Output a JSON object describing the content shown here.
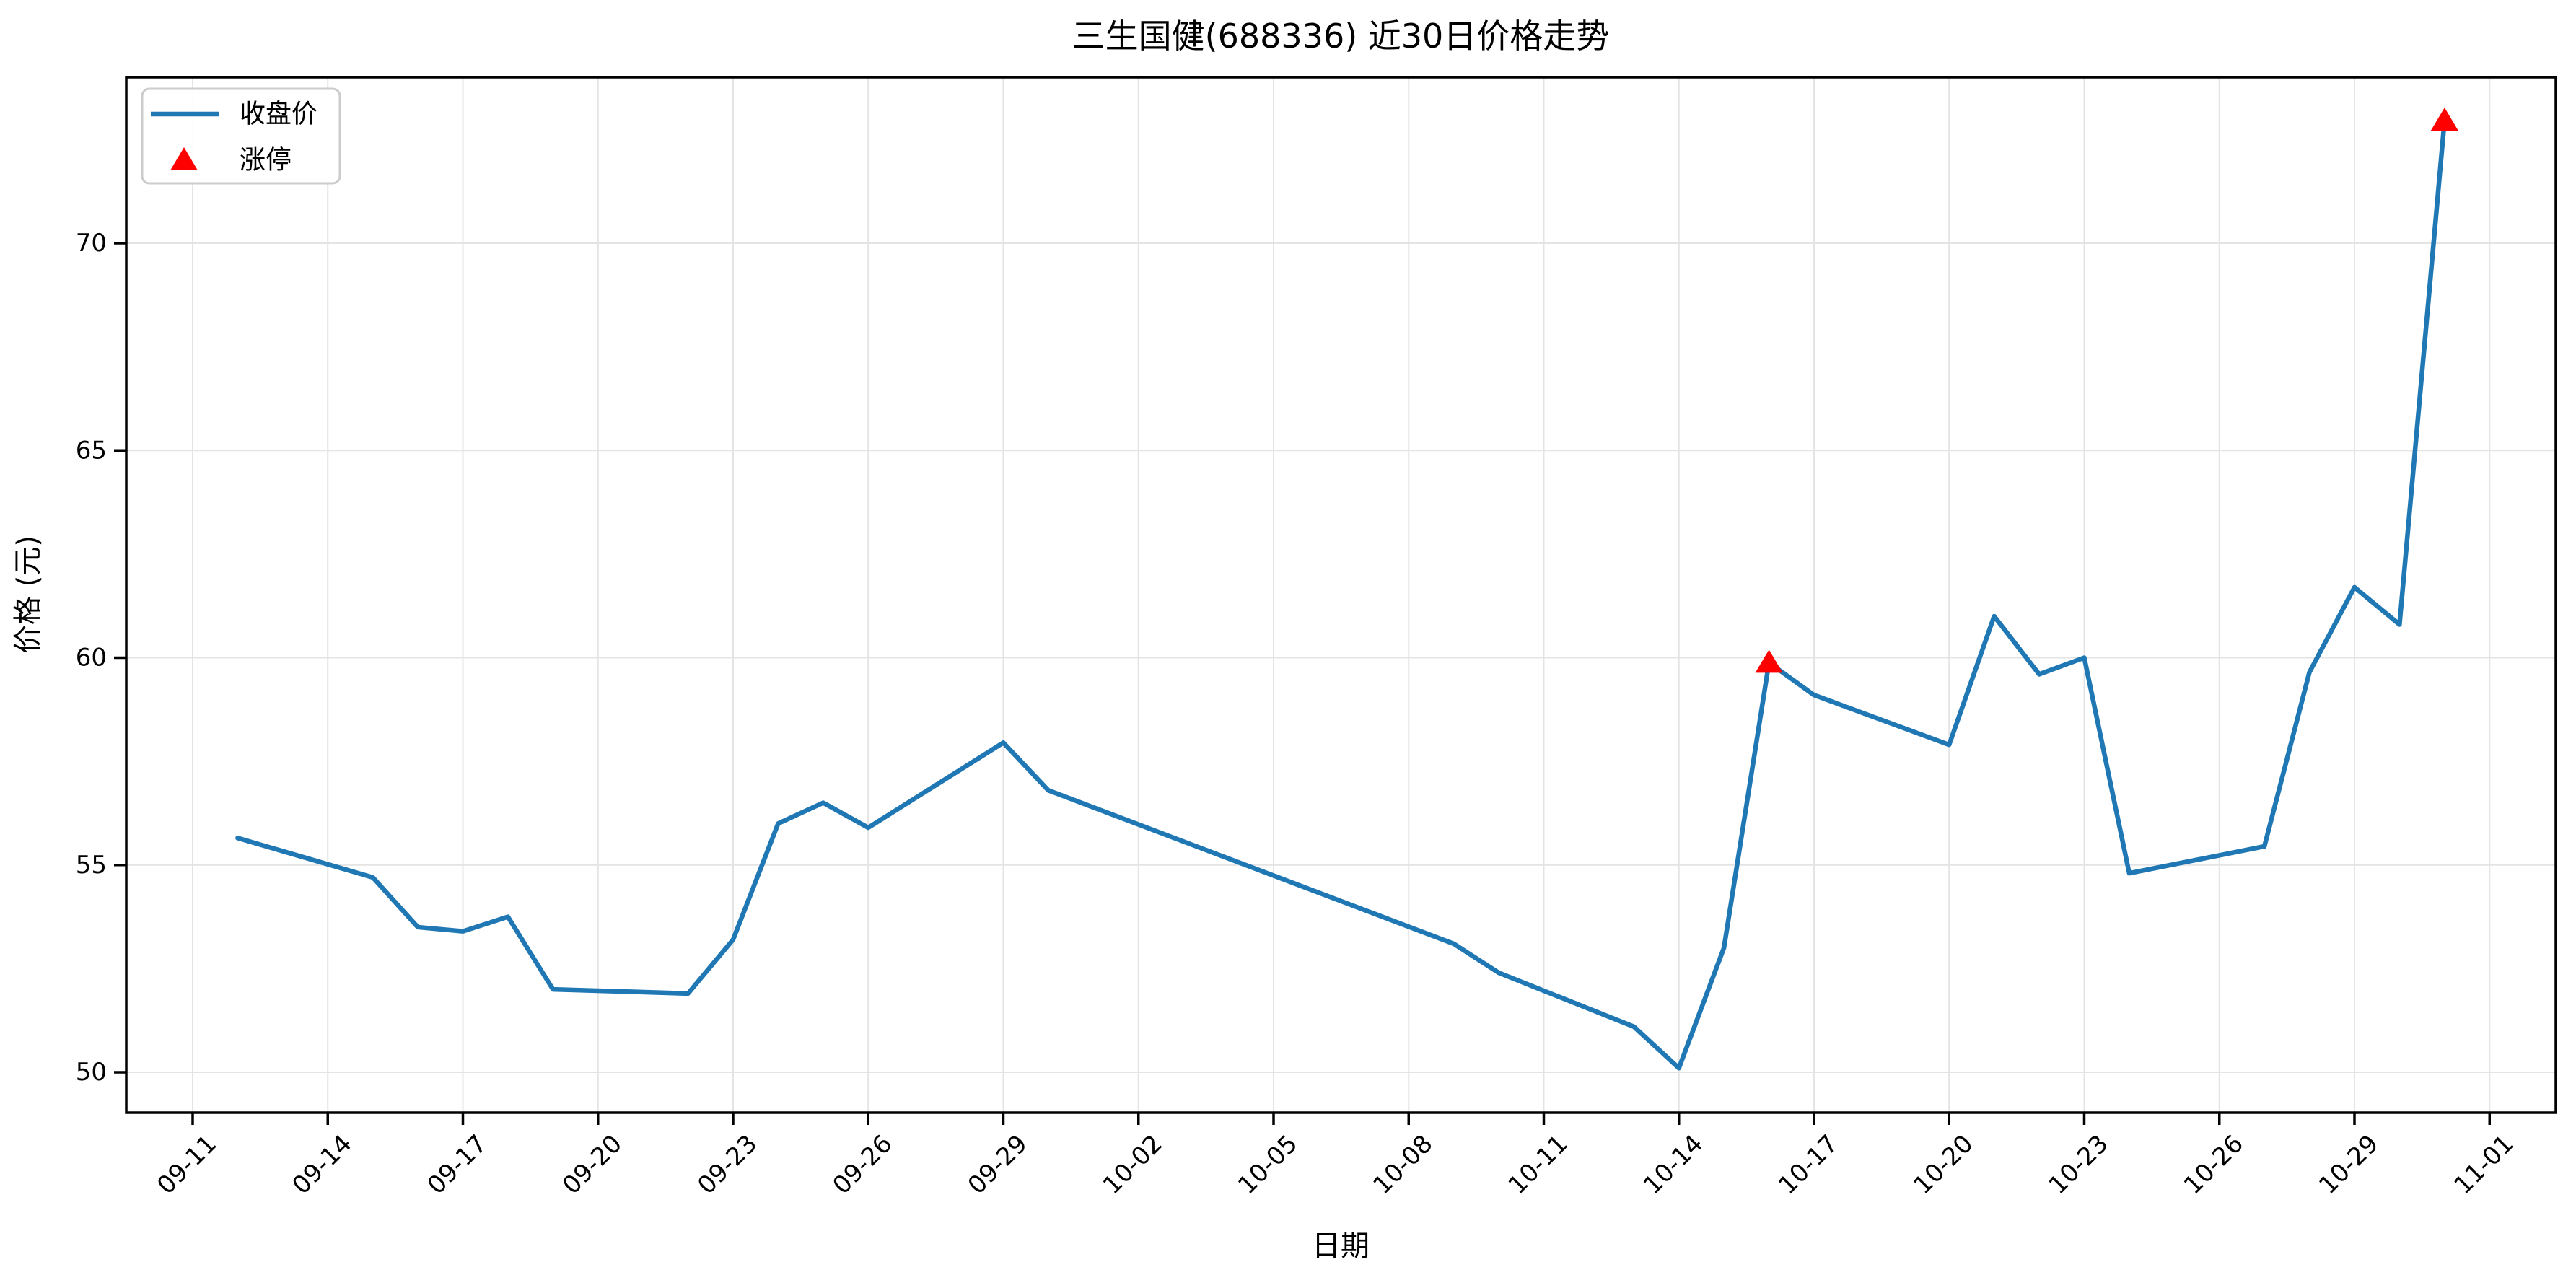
{
  "chart_data": {
    "type": "line",
    "title": "三生国健(688336) 近30日价格走势",
    "xlabel": "日期",
    "ylabel": "价格 (元)",
    "x": [
      "09-12",
      "09-15",
      "09-16",
      "09-17",
      "09-18",
      "09-19",
      "09-22",
      "09-23",
      "09-24",
      "09-25",
      "09-26",
      "09-29",
      "09-30",
      "10-09",
      "10-10",
      "10-13",
      "10-14",
      "10-15",
      "10-16",
      "10-17",
      "10-20",
      "10-21",
      "10-22",
      "10-23",
      "10-24",
      "10-27",
      "10-28",
      "10-29",
      "10-30",
      "10-31"
    ],
    "series": [
      {
        "name": "收盘价",
        "values": [
          55.65,
          54.7,
          53.5,
          53.4,
          53.75,
          52.0,
          51.9,
          53.2,
          56.0,
          56.5,
          55.9,
          57.95,
          56.8,
          53.1,
          52.4,
          51.1,
          50.1,
          53.0,
          59.88,
          59.1,
          57.9,
          61.0,
          59.6,
          60.0,
          54.8,
          55.45,
          59.65,
          61.7,
          60.8,
          72.96
        ]
      }
    ],
    "markers": {
      "name": "涨停",
      "points": [
        {
          "x": "10-16",
          "y": 59.88
        },
        {
          "x": "10-31",
          "y": 72.96
        }
      ]
    },
    "xticks": [
      "09-11",
      "09-14",
      "09-17",
      "09-20",
      "09-23",
      "09-26",
      "09-29",
      "10-02",
      "10-05",
      "10-08",
      "10-11",
      "10-14",
      "10-17",
      "10-20",
      "10-23",
      "10-26",
      "10-29",
      "11-01"
    ],
    "yticks": [
      50,
      55,
      60,
      65,
      70
    ],
    "ylim": [
      49.03,
      74.0
    ],
    "grid": true,
    "legend_position": "upper-left",
    "colors": {
      "line": "#1f77b4",
      "marker": "#ff0000",
      "grid": "#e4e4e4",
      "spine": "#000000",
      "legend_border": "#cccccc"
    }
  }
}
